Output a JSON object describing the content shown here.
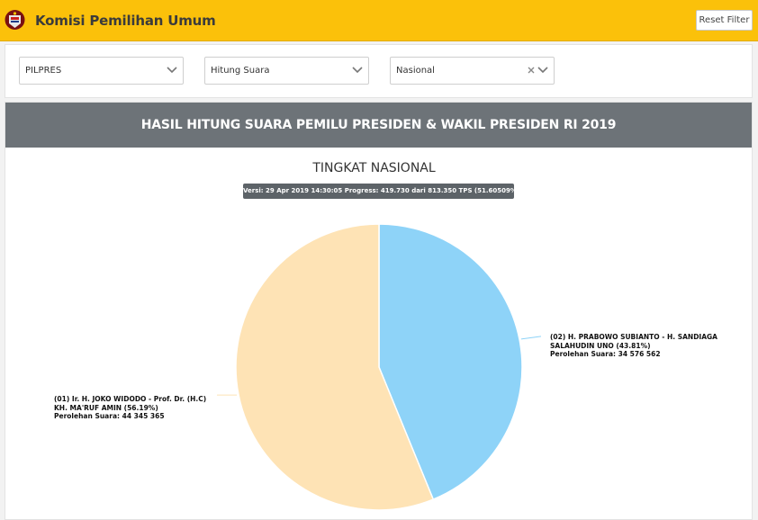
{
  "header": {
    "title": "Komisi Pemilihan Umum",
    "reset_label": "Reset Filter"
  },
  "filters": {
    "election": "PILPRES",
    "count_type": "Hitung Suara",
    "region": "Nasional"
  },
  "results": {
    "title": "HASIL HITUNG SUARA PEMILU PRESIDEN & WAKIL PRESIDEN RI 2019",
    "chart_title": "TINGKAT NASIONAL",
    "version": "Versi: 29 Apr 2019 14:30:05 Progress: 419.730 dari 813.350 TPS (51.60509%)"
  },
  "colors": {
    "accent": "#fbc10a",
    "slice_01": "#fee3b5",
    "slice_02": "#8ed3f8",
    "header_bar": "#6d7378"
  },
  "chart_data": {
    "type": "pie",
    "title": "TINGKAT NASIONAL",
    "slices": [
      {
        "name_line1": "(02) H. PRABOWO SUBIANTO - H. SANDIAGA",
        "name_line2": "SALAHUDIN UNO (43.81%)",
        "votes_label": "Perolehan Suara: 34 576 562",
        "votes": 34576562,
        "percent": 43.81,
        "color": "#8ed3f8"
      },
      {
        "name_line1": "(01) Ir. H. JOKO WIDODO - Prof. Dr. (H.C)",
        "name_line2": "KH. MA'RUF AMIN (56.19%)",
        "votes_label": "Perolehan Suara: 44 345 365",
        "votes": 44345365,
        "percent": 56.19,
        "color": "#fee3b5"
      }
    ]
  }
}
